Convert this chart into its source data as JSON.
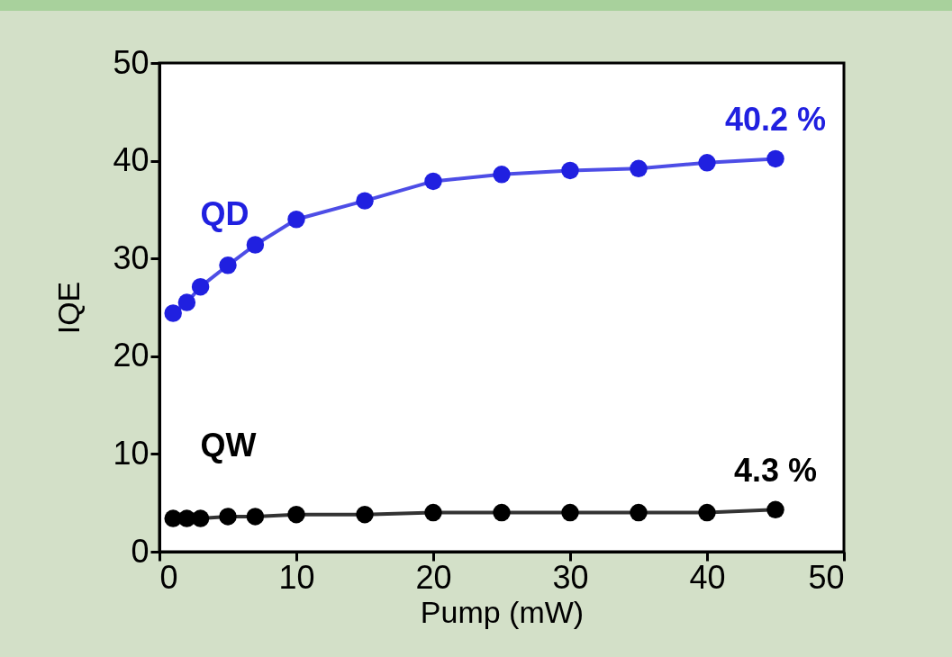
{
  "chart_data": {
    "type": "line",
    "xlabel": "Pump (mW)",
    "ylabel": "IQE",
    "xlim": [
      0,
      50
    ],
    "xticks": [
      0,
      10,
      20,
      30,
      40,
      50
    ],
    "ylim": [
      0,
      50
    ],
    "yticks": [
      0,
      10,
      20,
      30,
      40,
      50
    ],
    "x": [
      1,
      2,
      3,
      5,
      7,
      10,
      15,
      20,
      25,
      30,
      35,
      40,
      45
    ],
    "series": [
      {
        "name": "QD",
        "color": "#2020e0",
        "values": [
          24.4,
          25.5,
          27.1,
          29.3,
          31.4,
          34.0,
          35.9,
          37.9,
          38.6,
          39.0,
          39.2,
          39.8,
          40.2
        ]
      },
      {
        "name": "QW",
        "color": "#000000",
        "values": [
          3.4,
          3.4,
          3.4,
          3.6,
          3.6,
          3.8,
          3.8,
          4.0,
          4.0,
          4.0,
          4.0,
          4.0,
          4.3
        ]
      }
    ],
    "annotations": [
      {
        "text": "40.2 %",
        "x": 45,
        "y": 40.2
      },
      {
        "text": "4.3 %",
        "x": 45,
        "y": 4.3
      }
    ],
    "marker": "circle",
    "line_style": "solid",
    "grid": false,
    "legend": false
  }
}
